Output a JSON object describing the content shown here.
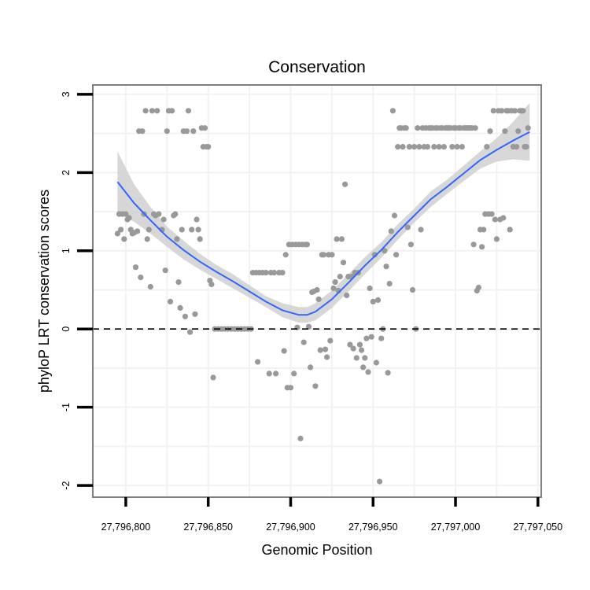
{
  "chart_data": {
    "type": "scatter",
    "title": "Conservation",
    "xlabel": "Genomic Position",
    "ylabel": "phyloP LRT conservation scores",
    "xlim": [
      27796780,
      27797052
    ],
    "ylim": [
      -2.15,
      3.12
    ],
    "x_ticks": [
      27796800,
      27796850,
      27796900,
      27796950,
      27797000,
      27797050
    ],
    "x_tick_labels": [
      "27,796,800",
      "27,796,850",
      "27,796,900",
      "27,796,950",
      "27,797,000",
      "27,797,050"
    ],
    "y_ticks": [
      -2,
      -1,
      0,
      1,
      2,
      3
    ],
    "y_tick_labels": [
      "-2",
      "-1",
      "0",
      "1",
      "2",
      "3"
    ],
    "reference_line": {
      "y": 0,
      "style": "dashed"
    },
    "grid": true,
    "colors": {
      "points": "#999999",
      "smooth": "#3366FF",
      "band": "#d0d0d0",
      "frame": "#7f7f7f",
      "grid": "#f2f2f2"
    },
    "points": [
      [
        27796795,
        1.22
      ],
      [
        27796796,
        1.47
      ],
      [
        27796797,
        1.27
      ],
      [
        27796798,
        1.47
      ],
      [
        27796799,
        1.15
      ],
      [
        27796800,
        1.47
      ],
      [
        27796801,
        1.4
      ],
      [
        27796802,
        1.42
      ],
      [
        27796803,
        1.27
      ],
      [
        27796804,
        1.22
      ],
      [
        27796805,
        1.23
      ],
      [
        27796806,
        0.79
      ],
      [
        27796807,
        1.25
      ],
      [
        27796808,
        2.53
      ],
      [
        27796809,
        0.66
      ],
      [
        27796810,
        2.53
      ],
      [
        27796811,
        1.47
      ],
      [
        27796812,
        2.79
      ],
      [
        27796813,
        1.15
      ],
      [
        27796814,
        1.27
      ],
      [
        27796815,
        0.54
      ],
      [
        27796816,
        2.79
      ],
      [
        27796817,
        1.47
      ],
      [
        27796818,
        1.45
      ],
      [
        27796819,
        2.79
      ],
      [
        27796820,
        1.47
      ],
      [
        27796822,
        1.27
      ],
      [
        27796823,
        1.4
      ],
      [
        27796824,
        0.75
      ],
      [
        27796825,
        2.53
      ],
      [
        27796826,
        2.79
      ],
      [
        27796827,
        0.35
      ],
      [
        27796828,
        2.79
      ],
      [
        27796829,
        1.45
      ],
      [
        27796830,
        1.47
      ],
      [
        27796831,
        1.15
      ],
      [
        27796832,
        0.6
      ],
      [
        27796833,
        0.27
      ],
      [
        27796834,
        1.27
      ],
      [
        27796835,
        2.53
      ],
      [
        27796836,
        0.16
      ],
      [
        27796837,
        2.53
      ],
      [
        27796838,
        2.79
      ],
      [
        27796839,
        -0.04
      ],
      [
        27796840,
        1.27
      ],
      [
        27796841,
        2.53
      ],
      [
        27796842,
        0.19
      ],
      [
        27796843,
        1.4
      ],
      [
        27796844,
        1.27
      ],
      [
        27796845,
        1.15
      ],
      [
        27796846,
        2.57
      ],
      [
        27796847,
        2.33
      ],
      [
        27796848,
        2.57
      ],
      [
        27796849,
        2.33
      ],
      [
        27796850,
        2.33
      ],
      [
        27796851,
        0.62
      ],
      [
        27796852,
        0.57
      ],
      [
        27796853,
        -0.62
      ],
      [
        27796854,
        0.0
      ],
      [
        27796856,
        0.0
      ],
      [
        27796858,
        0.0
      ],
      [
        27796860,
        0.0
      ],
      [
        27796862,
        0.0
      ],
      [
        27796864,
        0.0
      ],
      [
        27796866,
        0.0
      ],
      [
        27796868,
        0.0
      ],
      [
        27796870,
        0.0
      ],
      [
        27796872,
        0.0
      ],
      [
        27796874,
        0.0
      ],
      [
        27796876,
        0.0
      ],
      [
        27796877,
        0.72
      ],
      [
        27796879,
        0.72
      ],
      [
        27796880,
        -0.42
      ],
      [
        27796881,
        0.72
      ],
      [
        27796883,
        0.72
      ],
      [
        27796885,
        0.72
      ],
      [
        27796887,
        -0.57
      ],
      [
        27796888,
        0.72
      ],
      [
        27796890,
        0.72
      ],
      [
        27796891,
        -0.57
      ],
      [
        27796893,
        0.72
      ],
      [
        27796895,
        0.72
      ],
      [
        27796896,
        -0.28
      ],
      [
        27796897,
        0.95
      ],
      [
        27796898,
        -0.75
      ],
      [
        27796899,
        1.08
      ],
      [
        27796900,
        -0.75
      ],
      [
        27796901,
        1.08
      ],
      [
        27796902,
        -0.57
      ],
      [
        27796903,
        1.08
      ],
      [
        27796904,
        0.02
      ],
      [
        27796905,
        1.08
      ],
      [
        27796906,
        -1.4
      ],
      [
        27796907,
        1.08
      ],
      [
        27796908,
        -0.17
      ],
      [
        27796909,
        1.08
      ],
      [
        27796910,
        1.08
      ],
      [
        27796911,
        0.03
      ],
      [
        27796912,
        -0.49
      ],
      [
        27796913,
        0.47
      ],
      [
        27796914,
        0.48
      ],
      [
        27796915,
        -0.73
      ],
      [
        27796916,
        0.5
      ],
      [
        27796917,
        0.38
      ],
      [
        27796918,
        -0.27
      ],
      [
        27796919,
        0.95
      ],
      [
        27796920,
        0.95
      ],
      [
        27796921,
        -0.26
      ],
      [
        27796922,
        -0.36
      ],
      [
        27796923,
        0.95
      ],
      [
        27796924,
        -0.15
      ],
      [
        27796925,
        0.95
      ],
      [
        27796926,
        0.52
      ],
      [
        27796927,
        0.6
      ],
      [
        27796928,
        1.15
      ],
      [
        27796929,
        0.49
      ],
      [
        27796930,
        0.67
      ],
      [
        27796931,
        1.15
      ],
      [
        27796932,
        0.85
      ],
      [
        27796933,
        1.85
      ],
      [
        27796934,
        0.43
      ],
      [
        27796935,
        0.67
      ],
      [
        27796936,
        -0.2
      ],
      [
        27796937,
        0.67
      ],
      [
        27796938,
        -0.25
      ],
      [
        27796939,
        0.72
      ],
      [
        27796940,
        -0.37
      ],
      [
        27796941,
        0.72
      ],
      [
        27796942,
        -0.2
      ],
      [
        27796943,
        -0.27
      ],
      [
        27796944,
        -0.49
      ],
      [
        27796945,
        -0.37
      ],
      [
        27796946,
        -0.12
      ],
      [
        27796947,
        -0.55
      ],
      [
        27796948,
        0.52
      ],
      [
        27796949,
        -0.1
      ],
      [
        27796950,
        0.35
      ],
      [
        27796951,
        0.95
      ],
      [
        27796952,
        -0.43
      ],
      [
        27796953,
        0.37
      ],
      [
        27796954,
        -1.95
      ],
      [
        27796955,
        -0.12
      ],
      [
        27796956,
        0.0
      ],
      [
        27796957,
        1.0
      ],
      [
        27796958,
        0.8
      ],
      [
        27796959,
        -0.56
      ],
      [
        27796960,
        0.58
      ],
      [
        27796961,
        1.25
      ],
      [
        27796962,
        2.79
      ],
      [
        27796963,
        1.45
      ],
      [
        27796964,
        0.95
      ],
      [
        27796965,
        2.33
      ],
      [
        27796966,
        2.57
      ],
      [
        27796967,
        2.57
      ],
      [
        27796968,
        2.33
      ],
      [
        27796969,
        2.57
      ],
      [
        27796970,
        2.57
      ],
      [
        27796971,
        1.3
      ],
      [
        27796972,
        2.33
      ],
      [
        27796973,
        1.08
      ],
      [
        27796974,
        0.5
      ],
      [
        27796975,
        2.33
      ],
      [
        27796976,
        0.0
      ],
      [
        27796977,
        2.57
      ],
      [
        27796978,
        2.33
      ],
      [
        27796979,
        1.27
      ],
      [
        27796980,
        2.57
      ],
      [
        27796981,
        2.33
      ],
      [
        27796982,
        2.57
      ],
      [
        27796983,
        2.33
      ],
      [
        27796984,
        2.57
      ],
      [
        27796985,
        2.57
      ],
      [
        27796986,
        2.57
      ],
      [
        27796987,
        2.33
      ],
      [
        27796988,
        2.57
      ],
      [
        27796989,
        2.57
      ],
      [
        27796990,
        2.33
      ],
      [
        27796991,
        2.57
      ],
      [
        27796992,
        2.57
      ],
      [
        27796993,
        2.33
      ],
      [
        27796994,
        2.57
      ],
      [
        27796995,
        2.57
      ],
      [
        27796996,
        2.57
      ],
      [
        27796997,
        2.57
      ],
      [
        27796998,
        2.33
      ],
      [
        27796999,
        2.57
      ],
      [
        27797000,
        2.57
      ],
      [
        27797001,
        2.33
      ],
      [
        27797002,
        2.57
      ],
      [
        27797003,
        2.57
      ],
      [
        27797004,
        2.33
      ],
      [
        27797005,
        2.57
      ],
      [
        27797006,
        2.57
      ],
      [
        27797007,
        2.57
      ],
      [
        27797008,
        2.57
      ],
      [
        27797009,
        2.57
      ],
      [
        27797010,
        2.57
      ],
      [
        27797011,
        1.08
      ],
      [
        27797012,
        2.57
      ],
      [
        27797013,
        0.49
      ],
      [
        27797014,
        0.53
      ],
      [
        27797015,
        1.27
      ],
      [
        27797016,
        1.05
      ],
      [
        27797017,
        1.27
      ],
      [
        27797018,
        1.47
      ],
      [
        27797019,
        2.33
      ],
      [
        27797020,
        1.47
      ],
      [
        27797021,
        2.53
      ],
      [
        27797022,
        1.47
      ],
      [
        27797023,
        2.79
      ],
      [
        27797024,
        1.4
      ],
      [
        27797025,
        1.15
      ],
      [
        27797026,
        2.79
      ],
      [
        27797027,
        1.4
      ],
      [
        27797028,
        2.79
      ],
      [
        27797029,
        1.42
      ],
      [
        27797030,
        2.53
      ],
      [
        27797031,
        2.79
      ],
      [
        27797032,
        2.79
      ],
      [
        27797033,
        1.27
      ],
      [
        27797034,
        2.79
      ],
      [
        27797035,
        2.33
      ],
      [
        27797036,
        2.79
      ],
      [
        27797037,
        2.33
      ],
      [
        27797038,
        2.53
      ],
      [
        27797039,
        2.79
      ],
      [
        27797040,
        2.79
      ],
      [
        27797041,
        2.79
      ],
      [
        27797042,
        2.33
      ],
      [
        27797043,
        2.33
      ],
      [
        27797044,
        2.57
      ]
    ],
    "smooth": {
      "x": [
        27796795,
        27796805,
        27796815,
        27796825,
        27796835,
        27796845,
        27796855,
        27796865,
        27796875,
        27796885,
        27796895,
        27796905,
        27796910,
        27796915,
        27796925,
        27796935,
        27796945,
        27796955,
        27796965,
        27796975,
        27796985,
        27796995,
        27797005,
        27797015,
        27797025,
        27797035,
        27797045
      ],
      "y": [
        1.88,
        1.61,
        1.39,
        1.18,
        1.01,
        0.86,
        0.73,
        0.61,
        0.48,
        0.35,
        0.24,
        0.18,
        0.18,
        0.22,
        0.38,
        0.59,
        0.81,
        1.01,
        1.24,
        1.45,
        1.66,
        1.82,
        1.99,
        2.16,
        2.29,
        2.41,
        2.52
      ],
      "lower": [
        1.49,
        1.37,
        1.22,
        1.05,
        0.89,
        0.76,
        0.64,
        0.52,
        0.4,
        0.28,
        0.15,
        0.08,
        0.08,
        0.11,
        0.27,
        0.48,
        0.7,
        0.91,
        1.14,
        1.36,
        1.56,
        1.73,
        1.89,
        2.05,
        2.14,
        2.17,
        2.15
      ],
      "upper": [
        2.27,
        1.85,
        1.56,
        1.31,
        1.13,
        0.96,
        0.82,
        0.7,
        0.56,
        0.42,
        0.33,
        0.28,
        0.28,
        0.33,
        0.49,
        0.7,
        0.92,
        1.11,
        1.34,
        1.54,
        1.76,
        1.91,
        2.09,
        2.27,
        2.44,
        2.65,
        2.89
      ]
    }
  }
}
